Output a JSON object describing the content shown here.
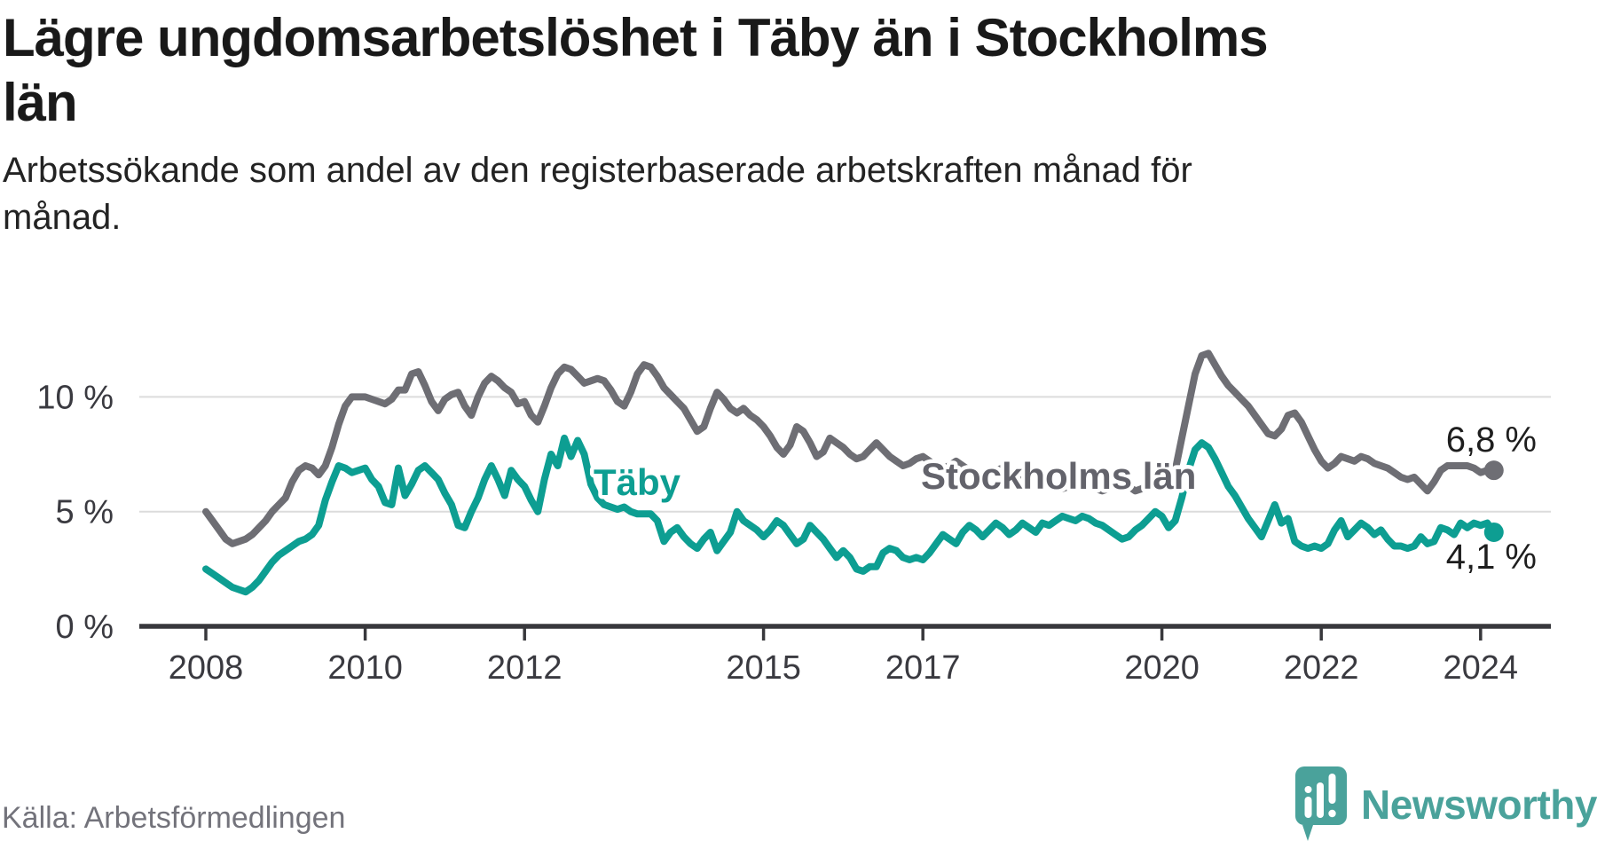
{
  "header": {
    "title": "Lägre ungdomsarbetslöshet i Täby än i Stockholms län",
    "title_lines": [
      "Lägre ungdomsarbetslöshet i Täby än i Stockholms",
      "län"
    ],
    "subtitle": "Arbetssökande som andel av den registerbaserade arbetskraften månad för månad.",
    "subtitle_lines": [
      "Arbetssökande som andel av den registerbaserade arbetskraften månad för",
      "månad."
    ]
  },
  "footer": {
    "source": "Källa: Arbetsförmedlingen",
    "brand": "Newsworthy",
    "logo_icon": "speech-bubble-bar-chart-icon"
  },
  "colors": {
    "taby_line": "#0d9e92",
    "stockholm_line": "#6e6e74",
    "stockholm_label": "#63636b",
    "taby_label": "#0d9e92",
    "end_label_text": "#1e1e1e",
    "axis": "#38383c",
    "axis_tick_label": "#3a3a40",
    "gridline": "#dcdcdc",
    "brand_teal": "#4aa29b",
    "background": "#ffffff"
  },
  "chart_data": {
    "type": "line",
    "title": "Lägre ungdomsarbetslöshet i Täby än i Stockholms län",
    "subtitle": "Arbetssökande som andel av den registerbaserade arbetskraften månad för månad.",
    "unit": "%",
    "frequency": "monthly",
    "x_start": "2008-01",
    "x_end": "2024-03",
    "xlabel": "",
    "ylabel": "",
    "ylim": [
      0,
      12.4
    ],
    "grid": "horizontal",
    "legend_position": "inline-labels",
    "y_ticks": [
      {
        "value": 10,
        "label": "10 %"
      },
      {
        "value": 5,
        "label": "5 %"
      },
      {
        "value": 0,
        "label": "0 %"
      }
    ],
    "x_ticks": [
      {
        "year": 2008,
        "label": "2008"
      },
      {
        "year": 2010,
        "label": "2010"
      },
      {
        "year": 2012,
        "label": "2012"
      },
      {
        "year": 2015,
        "label": "2015"
      },
      {
        "year": 2017,
        "label": "2017"
      },
      {
        "year": 2020,
        "label": "2020"
      },
      {
        "year": 2022,
        "label": "2022"
      },
      {
        "year": 2024,
        "label": "2024"
      }
    ],
    "series": [
      {
        "name": "Stockholms län",
        "slug": "stockholm",
        "color": "#6e6e74",
        "end_value": 6.8,
        "end_label": "6,8 %",
        "values": [
          5.0,
          4.6,
          4.2,
          3.8,
          3.6,
          3.7,
          3.8,
          4.0,
          4.3,
          4.6,
          5.0,
          5.3,
          5.6,
          6.3,
          6.8,
          7.0,
          6.9,
          6.6,
          7.0,
          7.8,
          8.8,
          9.6,
          10.0,
          10.0,
          10.0,
          9.9,
          9.8,
          9.7,
          9.9,
          10.3,
          10.3,
          11.0,
          11.1,
          10.5,
          9.8,
          9.4,
          9.9,
          10.1,
          10.2,
          9.6,
          9.2,
          10.0,
          10.6,
          10.9,
          10.7,
          10.4,
          10.2,
          9.7,
          9.8,
          9.2,
          8.9,
          9.6,
          10.4,
          11.0,
          11.3,
          11.2,
          10.9,
          10.6,
          10.7,
          10.8,
          10.7,
          10.3,
          9.8,
          9.6,
          10.2,
          11.0,
          11.4,
          11.3,
          10.9,
          10.4,
          10.1,
          9.8,
          9.5,
          9.0,
          8.5,
          8.7,
          9.5,
          10.2,
          9.9,
          9.5,
          9.3,
          9.5,
          9.2,
          9.0,
          8.7,
          8.3,
          7.8,
          7.5,
          7.9,
          8.7,
          8.5,
          8.0,
          7.4,
          7.6,
          8.2,
          8.0,
          7.8,
          7.5,
          7.3,
          7.4,
          7.7,
          8.0,
          7.7,
          7.4,
          7.2,
          7.0,
          7.1,
          7.3,
          7.4,
          7.2,
          7.0,
          6.9,
          7.0,
          7.2,
          7.0,
          6.8,
          6.6,
          6.5,
          6.6,
          6.8,
          6.9,
          6.7,
          6.5,
          6.4,
          6.5,
          6.7,
          6.5,
          6.3,
          6.1,
          6.0,
          6.1,
          6.3,
          6.4,
          6.2,
          6.0,
          5.9,
          6.0,
          6.2,
          6.3,
          6.1,
          5.9,
          6.0,
          6.2,
          6.4,
          6.4,
          6.3,
          6.8,
          8.2,
          9.6,
          11.0,
          11.8,
          11.9,
          11.4,
          10.9,
          10.5,
          10.2,
          9.9,
          9.6,
          9.2,
          8.8,
          8.4,
          8.3,
          8.6,
          9.2,
          9.3,
          8.9,
          8.3,
          7.7,
          7.2,
          6.9,
          7.1,
          7.4,
          7.3,
          7.2,
          7.4,
          7.3,
          7.1,
          7.0,
          6.9,
          6.7,
          6.5,
          6.4,
          6.5,
          6.2,
          5.9,
          6.3,
          6.8,
          7.0,
          7.0,
          7.0,
          7.0,
          6.9,
          6.7,
          6.8,
          6.8
        ]
      },
      {
        "name": "Täby",
        "slug": "taby",
        "color": "#0d9e92",
        "end_value": 4.1,
        "end_label": "4,1 %",
        "values": [
          2.5,
          2.3,
          2.1,
          1.9,
          1.7,
          1.6,
          1.5,
          1.7,
          2.0,
          2.4,
          2.8,
          3.1,
          3.3,
          3.5,
          3.7,
          3.8,
          4.0,
          4.4,
          5.5,
          6.3,
          7.0,
          6.9,
          6.7,
          6.8,
          6.9,
          6.4,
          6.1,
          5.4,
          5.3,
          6.9,
          5.7,
          6.2,
          6.8,
          7.0,
          6.7,
          6.4,
          5.8,
          5.3,
          4.4,
          4.3,
          5.0,
          5.6,
          6.4,
          7.0,
          6.4,
          5.7,
          6.8,
          6.4,
          6.1,
          5.5,
          5.0,
          6.4,
          7.5,
          7.0,
          8.2,
          7.4,
          8.1,
          7.5,
          6.2,
          5.6,
          5.3,
          5.2,
          5.1,
          5.2,
          5.0,
          4.9,
          4.9,
          4.9,
          4.6,
          3.7,
          4.1,
          4.3,
          3.9,
          3.6,
          3.4,
          3.8,
          4.1,
          3.3,
          3.7,
          4.1,
          5.0,
          4.6,
          4.4,
          4.2,
          3.9,
          4.2,
          4.6,
          4.4,
          4.0,
          3.6,
          3.8,
          4.4,
          4.1,
          3.8,
          3.4,
          3.0,
          3.3,
          3.0,
          2.5,
          2.4,
          2.6,
          2.6,
          3.2,
          3.4,
          3.3,
          3.0,
          2.9,
          3.0,
          2.9,
          3.2,
          3.6,
          4.0,
          3.8,
          3.6,
          4.1,
          4.4,
          4.2,
          3.9,
          4.2,
          4.5,
          4.3,
          4.0,
          4.2,
          4.5,
          4.3,
          4.1,
          4.5,
          4.4,
          4.6,
          4.8,
          4.7,
          4.6,
          4.8,
          4.7,
          4.5,
          4.4,
          4.2,
          4.0,
          3.8,
          3.9,
          4.2,
          4.4,
          4.7,
          5.0,
          4.8,
          4.3,
          4.6,
          5.6,
          6.8,
          7.7,
          8.0,
          7.8,
          7.3,
          6.7,
          6.1,
          5.7,
          5.2,
          4.7,
          4.3,
          3.9,
          4.6,
          5.3,
          4.5,
          4.7,
          3.7,
          3.5,
          3.4,
          3.5,
          3.4,
          3.6,
          4.2,
          4.6,
          3.9,
          4.2,
          4.5,
          4.3,
          4.0,
          4.2,
          3.8,
          3.5,
          3.5,
          3.4,
          3.5,
          3.9,
          3.6,
          3.7,
          4.3,
          4.2,
          4.0,
          4.5,
          4.3,
          4.5,
          4.4,
          4.5,
          4.1
        ]
      }
    ],
    "series_inline_labels": [
      {
        "series": "Täby",
        "text": "Täby"
      },
      {
        "series": "Stockholms län",
        "text": "Stockholms län"
      }
    ]
  }
}
